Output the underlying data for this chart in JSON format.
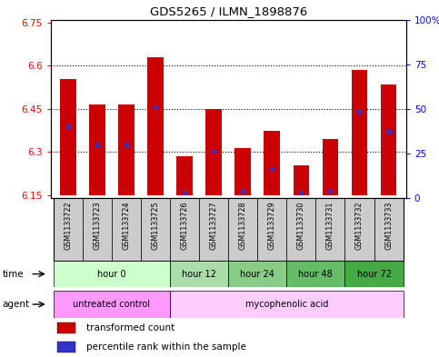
{
  "title": "GDS5265 / ILMN_1898876",
  "samples": [
    "GSM1133722",
    "GSM1133723",
    "GSM1133724",
    "GSM1133725",
    "GSM1133726",
    "GSM1133727",
    "GSM1133728",
    "GSM1133729",
    "GSM1133730",
    "GSM1133731",
    "GSM1133732",
    "GSM1133733"
  ],
  "bar_tops": [
    6.555,
    6.465,
    6.465,
    6.63,
    6.285,
    6.45,
    6.315,
    6.375,
    6.255,
    6.345,
    6.585,
    6.535
  ],
  "bar_bottom": 6.15,
  "blue_vals": [
    6.39,
    6.325,
    6.325,
    6.455,
    6.16,
    6.305,
    6.165,
    6.24,
    6.16,
    6.165,
    6.44,
    6.37
  ],
  "ylim_left": [
    6.14,
    6.76
  ],
  "ylim_right": [
    0,
    100
  ],
  "left_ticks": [
    6.15,
    6.3,
    6.45,
    6.6,
    6.75
  ],
  "right_ticks": [
    0,
    25,
    50,
    75,
    100
  ],
  "right_tick_labels": [
    "0",
    "25",
    "50",
    "75",
    "100%"
  ],
  "grid_vals": [
    6.3,
    6.45,
    6.6
  ],
  "bar_color": "#cc0000",
  "blue_color": "#3333cc",
  "time_groups": [
    {
      "label": "hour 0",
      "start": 0,
      "end": 4,
      "color": "#ccffcc"
    },
    {
      "label": "hour 12",
      "start": 4,
      "end": 6,
      "color": "#aaddaa"
    },
    {
      "label": "hour 24",
      "start": 6,
      "end": 8,
      "color": "#88cc88"
    },
    {
      "label": "hour 48",
      "start": 8,
      "end": 10,
      "color": "#66bb66"
    },
    {
      "label": "hour 72",
      "start": 10,
      "end": 12,
      "color": "#44aa44"
    }
  ],
  "agent_groups": [
    {
      "label": "untreated control",
      "start": 0,
      "end": 4,
      "color": "#ff99ff"
    },
    {
      "label": "mycophenolic acid",
      "start": 4,
      "end": 12,
      "color": "#ffccff"
    }
  ],
  "legend_red": "transformed count",
  "legend_blue": "percentile rank within the sample",
  "sample_box_color": "#cccccc"
}
